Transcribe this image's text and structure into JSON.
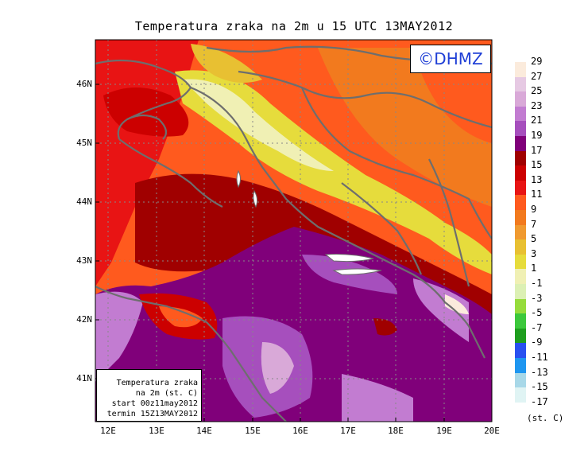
{
  "title": "Temperatura zraka na 2m u 15 UTC 13MAY2012",
  "watermark": "©DHMZ",
  "info_box": {
    "line1": "Temperatura zraka",
    "line2": "na 2m (st. C)",
    "line3": "start 00z11may2012",
    "line4": "termin 15Z13MAY2012"
  },
  "lat_labels": [
    "46N",
    "45N",
    "44N",
    "43N",
    "42N",
    "41N"
  ],
  "lon_labels": [
    "12E",
    "13E",
    "14E",
    "15E",
    "16E",
    "17E",
    "18E",
    "19E",
    "20E"
  ],
  "legend": {
    "unit": "(st. C)",
    "levels": [
      {
        "label": "29",
        "color": "#fbebdc"
      },
      {
        "label": "27",
        "color": "#e6c9e3"
      },
      {
        "label": "25",
        "color": "#d9a9d8"
      },
      {
        "label": "23",
        "color": "#c27cd1"
      },
      {
        "label": "21",
        "color": "#a64fbd"
      },
      {
        "label": "19",
        "color": "#80007a"
      },
      {
        "label": "17",
        "color": "#a00000"
      },
      {
        "label": "15",
        "color": "#cc0000"
      },
      {
        "label": "13",
        "color": "#e81414"
      },
      {
        "label": "11",
        "color": "#ff5a1e"
      },
      {
        "label": "9",
        "color": "#f27a1e"
      },
      {
        "label": "7",
        "color": "#f09a30"
      },
      {
        "label": "5",
        "color": "#e8c032"
      },
      {
        "label": "3",
        "color": "#e6dc3c"
      },
      {
        "label": "1",
        "color": "#f0f0b4"
      },
      {
        "label": "-1",
        "color": "#dcf0b4"
      },
      {
        "label": "-3",
        "color": "#96dc3c"
      },
      {
        "label": "-5",
        "color": "#3cc83c"
      },
      {
        "label": "-7",
        "color": "#1e9e1e"
      },
      {
        "label": "-9",
        "color": "#2850f0"
      },
      {
        "label": "-11",
        "color": "#1e96f0"
      },
      {
        "label": "-13",
        "color": "#a8d8e8"
      },
      {
        "label": "-15",
        "color": "#e0f4f4"
      },
      {
        "label": "-17",
        "color": "#ffffff"
      }
    ]
  }
}
